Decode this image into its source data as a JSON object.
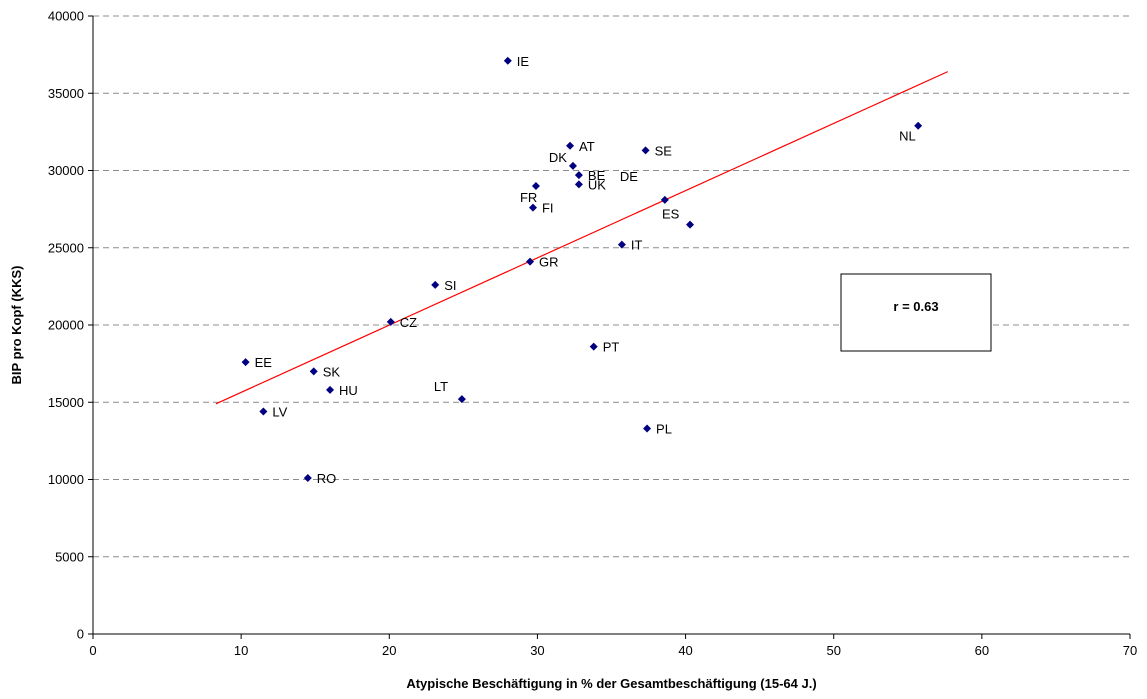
{
  "chart_data": {
    "type": "scatter",
    "xlabel": "Atypische Beschäftigung in % der Gesamtbeschäftigung (15-64 J.)",
    "ylabel": "BIP pro Kopf (KKS)",
    "xlim": [
      0,
      70
    ],
    "ylim": [
      0,
      40000
    ],
    "x_ticks": [
      "0",
      "10",
      "20",
      "30",
      "40",
      "50",
      "60",
      "70"
    ],
    "y_ticks": [
      "0",
      "5000",
      "10000",
      "15000",
      "20000",
      "25000",
      "30000",
      "35000",
      "40000"
    ],
    "grid": "horizontal-dashed",
    "point_color": "#000080",
    "trendline_color": "#ff0000",
    "points": [
      {
        "label": "IE",
        "x": 28.0,
        "y": 37100
      },
      {
        "label": "NL",
        "x": 55.7,
        "y": 32900
      },
      {
        "label": "AT",
        "x": 32.2,
        "y": 31600
      },
      {
        "label": "SE",
        "x": 37.3,
        "y": 31300
      },
      {
        "label": "DK",
        "x": 32.4,
        "y": 30300
      },
      {
        "label": "BE",
        "x": 32.8,
        "y": 29700
      },
      {
        "label": "UK",
        "x": 32.8,
        "y": 29100
      },
      {
        "label": "FR",
        "x": 29.9,
        "y": 29000
      },
      {
        "label": "DE",
        "x": 38.6,
        "y": 28100
      },
      {
        "label": "FI",
        "x": 29.7,
        "y": 27600
      },
      {
        "label": "ES",
        "x": 40.3,
        "y": 26500
      },
      {
        "label": "IT",
        "x": 35.7,
        "y": 25200
      },
      {
        "label": "GR",
        "x": 29.5,
        "y": 24100
      },
      {
        "label": "SI",
        "x": 23.1,
        "y": 22600
      },
      {
        "label": "CZ",
        "x": 20.1,
        "y": 20200
      },
      {
        "label": "PT",
        "x": 33.8,
        "y": 18600
      },
      {
        "label": "EE",
        "x": 10.3,
        "y": 17600
      },
      {
        "label": "SK",
        "x": 14.9,
        "y": 17000
      },
      {
        "label": "HU",
        "x": 16.0,
        "y": 15800
      },
      {
        "label": "LT",
        "x": 24.9,
        "y": 15200
      },
      {
        "label": "LV",
        "x": 11.5,
        "y": 14400
      },
      {
        "label": "PL",
        "x": 37.4,
        "y": 13300
      },
      {
        "label": "RO",
        "x": 14.5,
        "y": 10100
      }
    ],
    "trendline": {
      "x": [
        8.3,
        57.7
      ],
      "y": [
        14900,
        36400
      ]
    },
    "annotation": "r =  0.63"
  }
}
